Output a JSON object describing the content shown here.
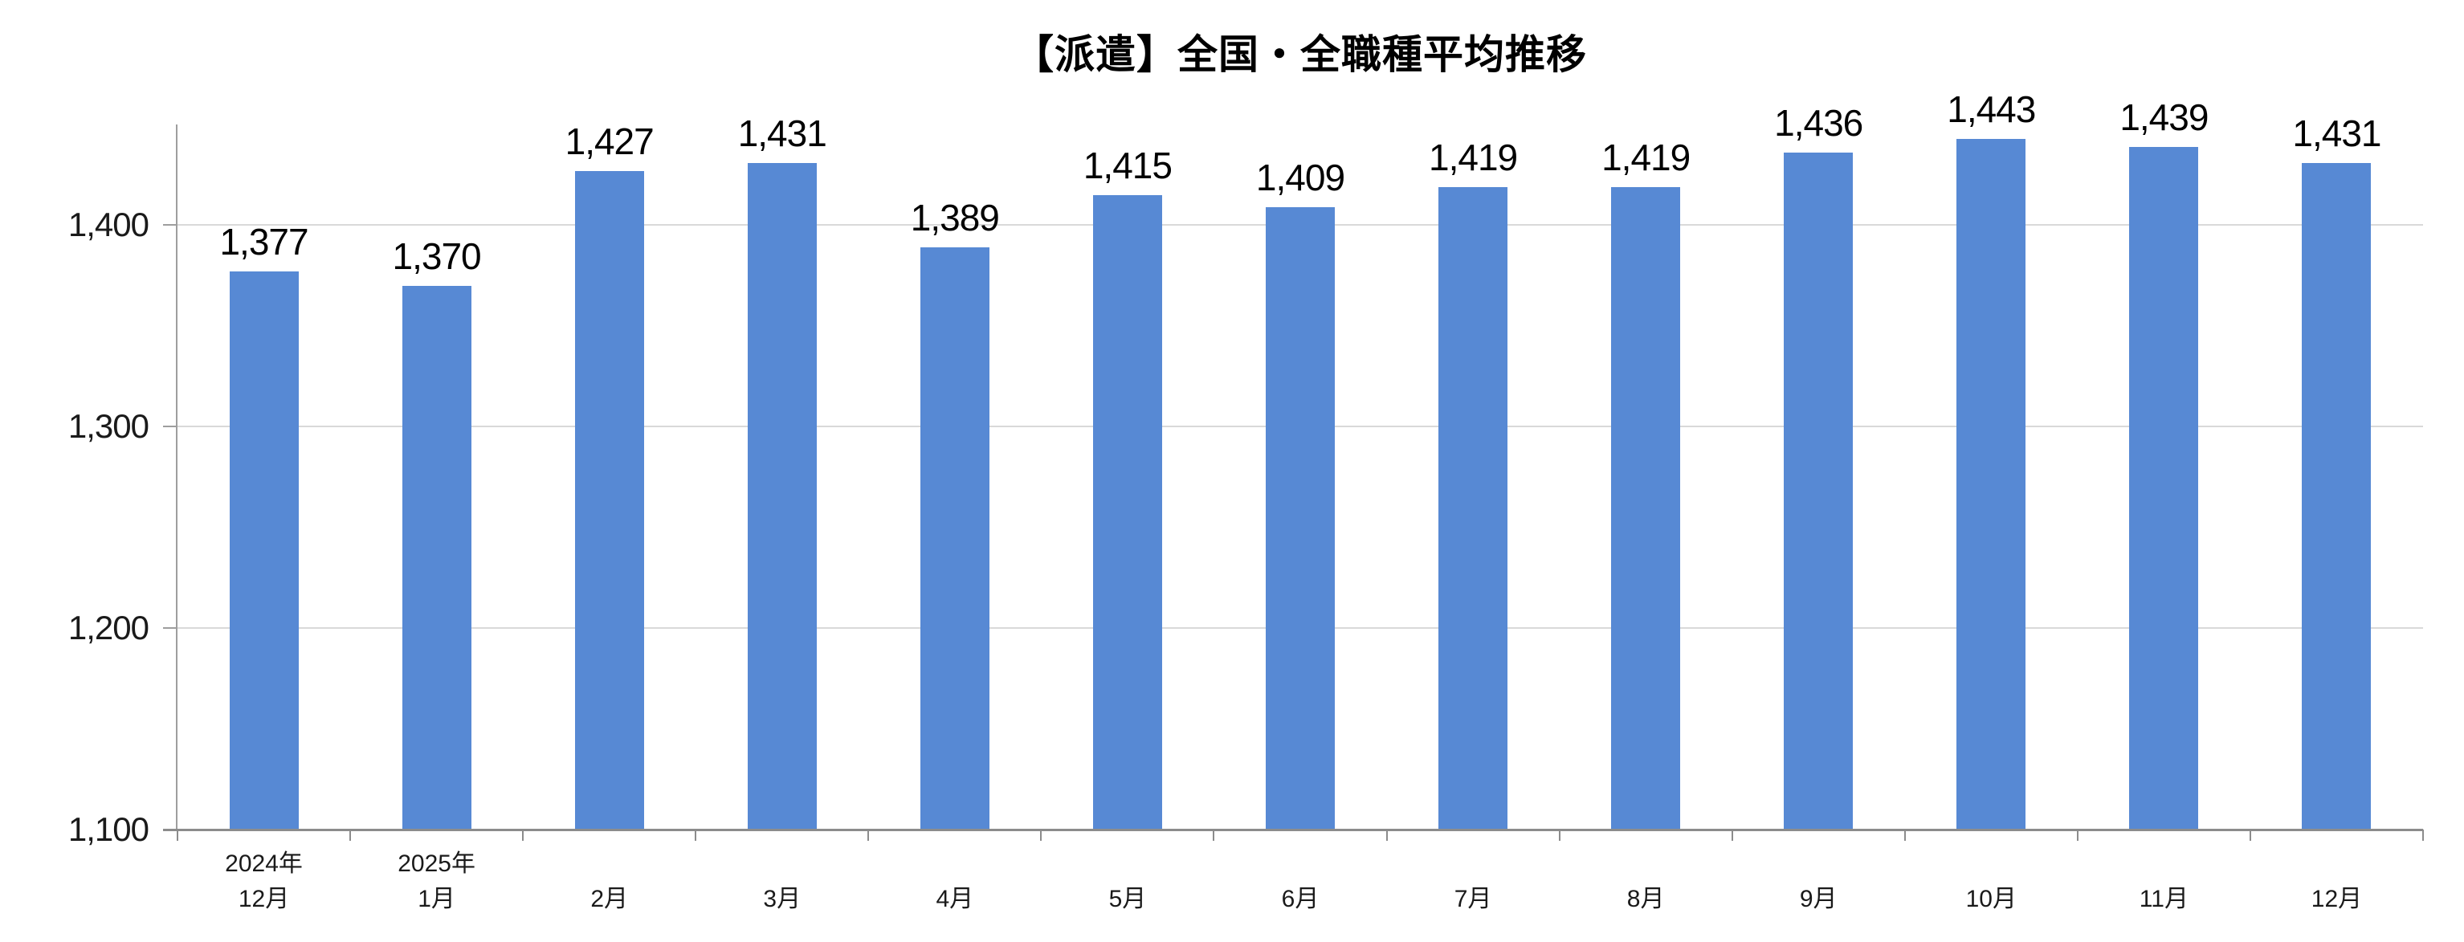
{
  "chart_data": {
    "type": "bar",
    "title": "【派遣】全国・全職種平均推移",
    "categories": [
      {
        "year": "2024年",
        "month": "12月"
      },
      {
        "year": "2025年",
        "month": "1月"
      },
      {
        "year": "",
        "month": "2月"
      },
      {
        "year": "",
        "month": "3月"
      },
      {
        "year": "",
        "month": "4月"
      },
      {
        "year": "",
        "month": "5月"
      },
      {
        "year": "",
        "month": "6月"
      },
      {
        "year": "",
        "month": "7月"
      },
      {
        "year": "",
        "month": "8月"
      },
      {
        "year": "",
        "month": "9月"
      },
      {
        "year": "",
        "month": "10月"
      },
      {
        "year": "",
        "month": "11月"
      },
      {
        "year": "",
        "month": "12月"
      }
    ],
    "values": [
      1377,
      1370,
      1427,
      1431,
      1389,
      1415,
      1409,
      1419,
      1419,
      1436,
      1443,
      1439,
      1431
    ],
    "value_labels": [
      "1,377",
      "1,370",
      "1,427",
      "1,431",
      "1,389",
      "1,415",
      "1,409",
      "1,419",
      "1,419",
      "1,436",
      "1,443",
      "1,439",
      "1,431"
    ],
    "xlabel": "",
    "ylabel": "",
    "ylim": [
      1100,
      1450
    ],
    "y_ticks": [
      1100,
      1200,
      1300,
      1400
    ],
    "y_tick_labels": [
      "1,100",
      "1,200",
      "1,300",
      "1,400"
    ],
    "grid": true,
    "legend_position": "none",
    "bar_color": "#5789d4",
    "gridline_color": "#d9d9d9",
    "axis_color": "#8c8c8c",
    "background_color": "#ffffff"
  }
}
